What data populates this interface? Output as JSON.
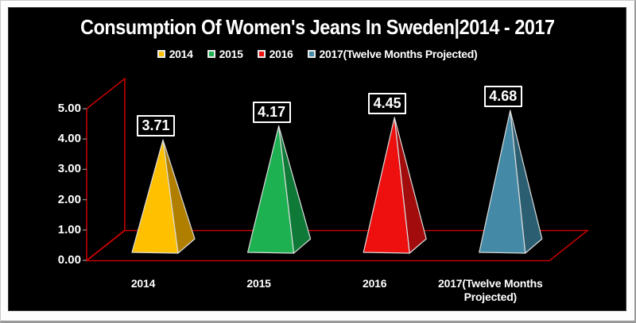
{
  "title": "Consumption Of Women's Jeans In Sweden|2014 - 2017",
  "legend": [
    {
      "label": "2014",
      "color": "#FFC000"
    },
    {
      "label": "2015",
      "color": "#1DB151"
    },
    {
      "label": "2016",
      "color": "#EE0F0F"
    },
    {
      "label": "2017(Twelve Months Projected)",
      "color": "#4489A5"
    }
  ],
  "chart_data": {
    "type": "bar",
    "subtype": "3d-pyramid",
    "title": "Consumption Of Women's Jeans In Sweden|2014 - 2017",
    "categories": [
      "2014",
      "2015",
      "2016",
      "2017(Twelve Months Projected)"
    ],
    "values": [
      3.71,
      4.17,
      4.45,
      4.68
    ],
    "data_labels": [
      "3.71",
      "4.17",
      "4.45",
      "4.68"
    ],
    "yticks": [
      "5.00",
      "4.00",
      "3.00",
      "2.00",
      "1.00",
      "0.00"
    ],
    "ylim": [
      0,
      5
    ],
    "legend_position": "top",
    "grid": "off",
    "background_color": "#000000",
    "axis_color": "#C00000",
    "text_color": "#FFFFFF",
    "series_colors": [
      {
        "front": "#FFC000",
        "side": "#B07F00"
      },
      {
        "front": "#1DB151",
        "side": "#0F7A38"
      },
      {
        "front": "#EE0F0F",
        "side": "#A30C0C"
      },
      {
        "front": "#4489A5",
        "side": "#2C5E72"
      }
    ],
    "edge_color": "#DCDCDC",
    "tick_color": "#8a8a8a"
  }
}
